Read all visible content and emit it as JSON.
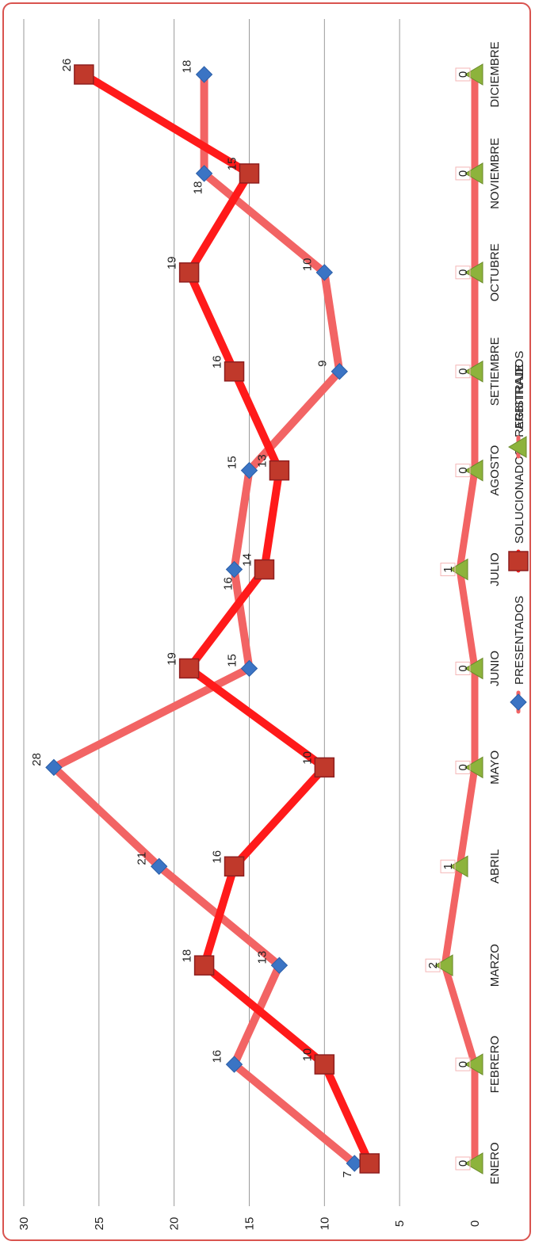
{
  "chart_data": {
    "type": "line",
    "orientation": "rotated-90",
    "categories": [
      "ENERO",
      "FEBRERO",
      "MARZO",
      "ABRIL",
      "MAYO",
      "JUNIO",
      "JULIO",
      "AGOSTO",
      "SETIEMBRE",
      "OCTUBRE",
      "NOVIEMBRE",
      "DICIEMBRE"
    ],
    "ylim": [
      0,
      30
    ],
    "yticks": [
      "0",
      "5",
      "10",
      "15",
      "20",
      "25",
      "30"
    ],
    "grid": true,
    "legend_position": "bottom",
    "series": [
      {
        "name": "PRESENTADOS",
        "values": [
          8,
          16,
          13,
          21,
          28,
          15,
          16,
          15,
          9,
          10,
          18,
          18
        ],
        "color": "#f26464",
        "marker": "diamond",
        "marker_color": "#3b74c4"
      },
      {
        "name": "SOLUCIONADOS - REGISTRADOS",
        "values": [
          7,
          10,
          18,
          16,
          10,
          19,
          14,
          13,
          16,
          19,
          15,
          26
        ],
        "color": "#ff1a1a",
        "marker": "square",
        "marker_color": "#c0392b"
      },
      {
        "name": "ARBITRAJE",
        "values": [
          0,
          0,
          2,
          1,
          0,
          0,
          1,
          0,
          0,
          0,
          0,
          0
        ],
        "color": "#f26464",
        "marker": "triangle",
        "marker_color": "#8db33c"
      }
    ]
  }
}
